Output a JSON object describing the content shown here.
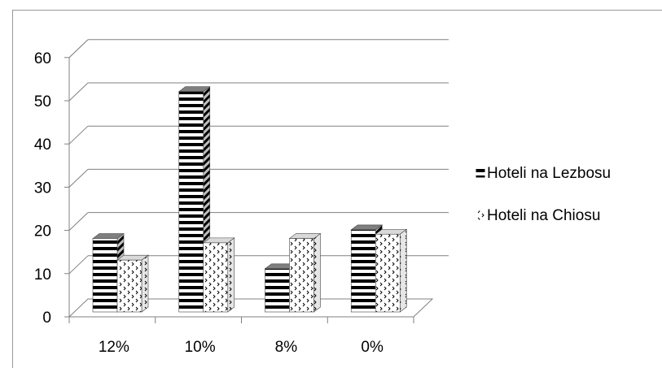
{
  "chart_data": {
    "type": "bar",
    "title": "",
    "xlabel": "",
    "ylabel": "",
    "categories": [
      "12%",
      "10%",
      "8%",
      "0%"
    ],
    "ylim": [
      0,
      60
    ],
    "yticks": [
      "0",
      "10",
      "20",
      "30",
      "40",
      "50",
      "60"
    ],
    "grid": true,
    "legend_position": "right",
    "series": [
      {
        "name": "Hoteli na Lezbosu",
        "values": [
          17,
          51,
          10,
          19
        ],
        "pattern": "horizontal-stripes"
      },
      {
        "name": "Hoteli na Chiosu",
        "values": [
          12,
          16,
          17,
          18
        ],
        "pattern": "dotted-chevrons"
      }
    ]
  }
}
